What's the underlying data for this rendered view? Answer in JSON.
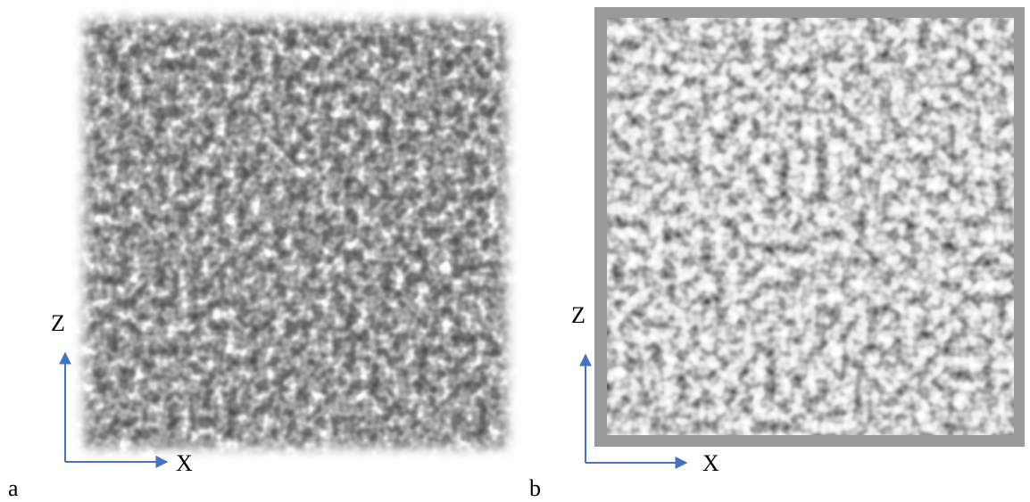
{
  "panels": [
    {
      "label": "a",
      "vertical_axis": "Z",
      "horizontal_axis": "X"
    },
    {
      "label": "b",
      "vertical_axis": "Z",
      "horizontal_axis": "X"
    }
  ]
}
